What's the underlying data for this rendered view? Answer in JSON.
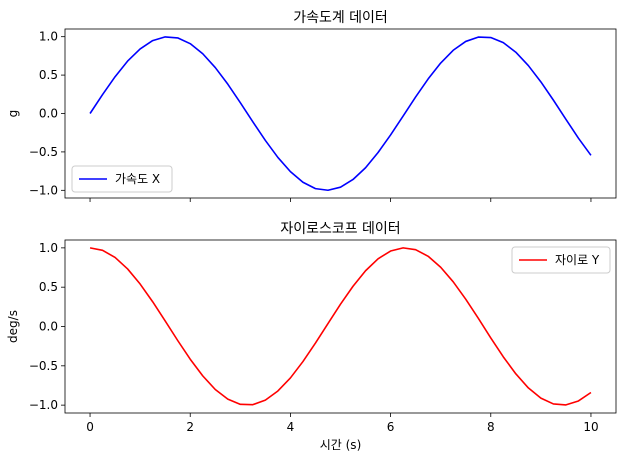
{
  "chart_data": [
    {
      "type": "line",
      "title": "가속도계 데이터",
      "xlabel": "",
      "ylabel": "g",
      "xlim": [
        -0.5,
        10.5
      ],
      "ylim": [
        -1.1,
        1.1
      ],
      "xticks": [
        0,
        2,
        4,
        6,
        8,
        10
      ],
      "xtick_labels_visible": false,
      "yticks": [
        -1.0,
        -0.5,
        0.0,
        0.5,
        1.0
      ],
      "ytick_labels": [
        "−1.0",
        "−0.5",
        "0.0",
        "0.5",
        "1.0"
      ],
      "grid": false,
      "legend": "lower-left",
      "series": [
        {
          "name": "가속도 X",
          "color": "#0000ff",
          "x": [
            0,
            0.25,
            0.5,
            0.75,
            1,
            1.25,
            1.5,
            1.75,
            2,
            2.25,
            2.5,
            2.75,
            3,
            3.25,
            3.5,
            3.75,
            4,
            4.25,
            4.5,
            4.75,
            5,
            5.25,
            5.5,
            5.75,
            6,
            6.25,
            6.5,
            6.75,
            7,
            7.25,
            7.5,
            7.75,
            8,
            8.25,
            8.5,
            8.75,
            9,
            9.25,
            9.5,
            9.75,
            10
          ],
          "y": [
            0.0,
            0.247,
            0.479,
            0.682,
            0.841,
            0.949,
            0.997,
            0.984,
            0.909,
            0.778,
            0.598,
            0.382,
            0.141,
            -0.108,
            -0.351,
            -0.572,
            -0.757,
            -0.895,
            -0.978,
            -0.999,
            -0.959,
            -0.859,
            -0.706,
            -0.508,
            -0.279,
            -0.033,
            0.215,
            0.45,
            0.657,
            0.823,
            0.938,
            0.995,
            0.989,
            0.923,
            0.798,
            0.624,
            0.412,
            0.174,
            -0.075,
            -0.321,
            -0.544
          ]
        }
      ]
    },
    {
      "type": "line",
      "title": "자이로스코프 데이터",
      "xlabel": "시간 (s)",
      "ylabel": "deg/s",
      "xlim": [
        -0.5,
        10.5
      ],
      "ylim": [
        -1.1,
        1.1
      ],
      "xticks": [
        0,
        2,
        4,
        6,
        8,
        10
      ],
      "xtick_labels": [
        "0",
        "2",
        "4",
        "6",
        "8",
        "10"
      ],
      "yticks": [
        -1.0,
        -0.5,
        0.0,
        0.5,
        1.0
      ],
      "ytick_labels": [
        "−1.0",
        "−0.5",
        "0.0",
        "0.5",
        "1.0"
      ],
      "grid": false,
      "legend": "upper-right",
      "series": [
        {
          "name": "자이로 Y",
          "color": "#ff0000",
          "x": [
            0,
            0.25,
            0.5,
            0.75,
            1,
            1.25,
            1.5,
            1.75,
            2,
            2.25,
            2.5,
            2.75,
            3,
            3.25,
            3.5,
            3.75,
            4,
            4.25,
            4.5,
            4.75,
            5,
            5.25,
            5.5,
            5.75,
            6,
            6.25,
            6.5,
            6.75,
            7,
            7.25,
            7.5,
            7.75,
            8,
            8.25,
            8.5,
            8.75,
            9,
            9.25,
            9.5,
            9.75,
            10
          ],
          "y": [
            1.0,
            0.969,
            0.878,
            0.732,
            0.54,
            0.315,
            0.071,
            -0.178,
            -0.416,
            -0.628,
            -0.801,
            -0.924,
            -0.99,
            -0.994,
            -0.936,
            -0.82,
            -0.654,
            -0.446,
            -0.211,
            0.037,
            0.284,
            0.512,
            0.709,
            0.861,
            0.96,
            1.0,
            0.977,
            0.893,
            0.754,
            0.568,
            0.347,
            0.105,
            -0.146,
            -0.386,
            -0.602,
            -0.781,
            -0.911,
            -0.985,
            -0.997,
            -0.947,
            -0.839
          ]
        }
      ]
    }
  ]
}
